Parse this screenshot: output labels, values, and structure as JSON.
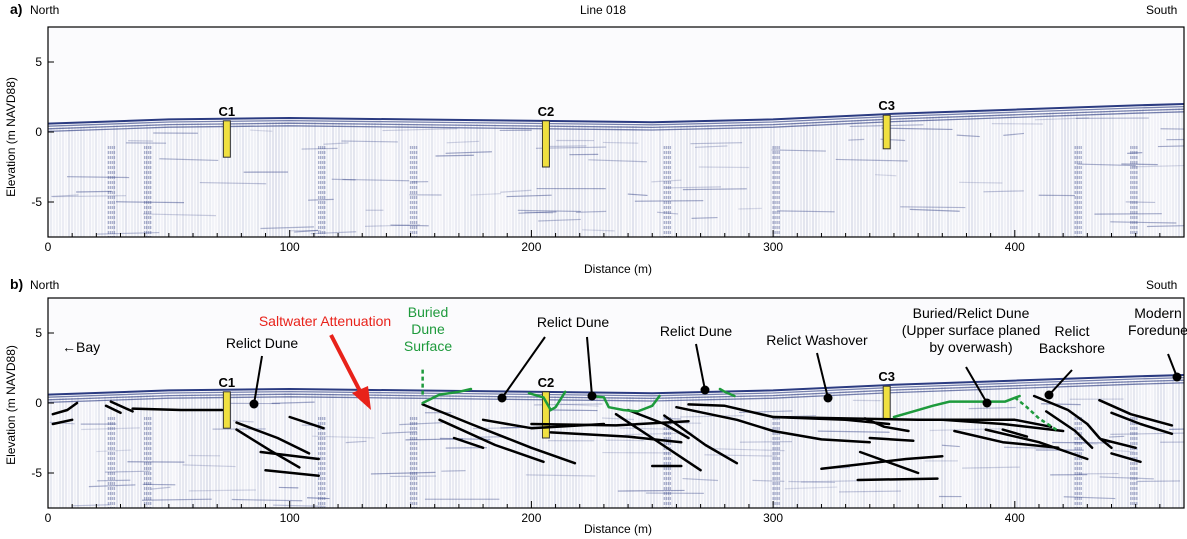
{
  "panels": [
    {
      "id": "a",
      "panel_label": "a)",
      "left_label": "North",
      "title": "Line 018",
      "right_label": "South",
      "xlabel": "Distance (m)",
      "ylabel": "Elevation (m NAVD88)",
      "cores": [
        "C1",
        "C2",
        "C3"
      ],
      "annotations": []
    },
    {
      "id": "b",
      "panel_label": "b)",
      "left_label": "North",
      "title": "",
      "right_label": "South",
      "xlabel": "Distance (m)",
      "ylabel": "Elevation (m NAVD88)",
      "cores": [
        "C1",
        "C2",
        "C3"
      ],
      "annotations": [
        {
          "name": "bay-label",
          "text": "←Bay",
          "color": "#000000"
        },
        {
          "name": "saltwater-attenuation-label",
          "text": "Saltwater Attenuation",
          "color": "#e8221a"
        },
        {
          "name": "buried-dune-surface-label",
          "lines": [
            "Buried",
            "Dune",
            "Surface"
          ],
          "color": "#1e9a3c"
        },
        {
          "name": "relict-dune-label-1",
          "text": "Relict Dune",
          "color": "#000000"
        },
        {
          "name": "relict-dune-label-2",
          "text": "Relict Dune",
          "color": "#000000"
        },
        {
          "name": "relict-dune-label-3",
          "text": "Relict Dune",
          "color": "#000000"
        },
        {
          "name": "relict-washover-label",
          "text": "Relict Washover",
          "color": "#000000"
        },
        {
          "name": "buried-relict-dune-label",
          "lines": [
            "Buried/Relict Dune",
            "(Upper surface planed",
            "by overwash)"
          ],
          "color": "#000000"
        },
        {
          "name": "relict-backshore-label",
          "lines": [
            "Relict",
            "Backshore"
          ],
          "color": "#000000"
        },
        {
          "name": "modern-foredune-label",
          "lines": [
            "Modern",
            "Foredune"
          ],
          "color": "#000000"
        }
      ]
    }
  ],
  "chart_data": {
    "type": "line",
    "xlim": [
      0,
      470
    ],
    "ylim": [
      -7.5,
      7.5
    ],
    "x_ticks": [
      0,
      100,
      200,
      300,
      400
    ],
    "y_ticks": [
      5,
      0,
      -5
    ],
    "xlabel": "Distance (m)",
    "ylabel": "Elevation (m NAVD88)",
    "grid": false,
    "colors": {
      "radar": "#20307a",
      "reflector": "#000000",
      "buried_surface": "#1e9a3c",
      "core": "#f0e040",
      "arrow": "#e8221a"
    },
    "series": [
      {
        "name": "",
        "x": [
          0,
          50,
          100,
          150,
          200,
          250,
          300,
          350,
          400,
          450,
          470
        ],
        "y": [
          0.6,
          0.9,
          1.0,
          0.9,
          0.8,
          0.7,
          0.9,
          1.3,
          1.6,
          1.9,
          2.0
        ]
      }
    ],
    "cores": [
      {
        "name": "C1",
        "x": 74,
        "top": 0.8,
        "bottom": -1.8
      },
      {
        "name": "C2",
        "x": 206,
        "top": 0.8,
        "bottom": -2.5
      },
      {
        "name": "C3",
        "x": 347,
        "top": 1.2,
        "bottom": -1.2
      }
    ],
    "reflectors": [
      [
        [
          2,
          -0.8
        ],
        [
          8,
          -0.5
        ],
        [
          12,
          0
        ]
      ],
      [
        [
          2,
          -1.5
        ],
        [
          10,
          -1.2
        ]
      ],
      [
        [
          24,
          -0.2
        ],
        [
          30,
          -0.7
        ]
      ],
      [
        [
          26,
          0.1
        ],
        [
          35,
          -0.6
        ]
      ],
      [
        [
          35,
          -0.4
        ],
        [
          55,
          -0.5
        ],
        [
          72,
          -0.5
        ]
      ],
      [
        [
          78,
          -1.4
        ],
        [
          95,
          -2.5
        ],
        [
          108,
          -3.6
        ]
      ],
      [
        [
          78,
          -1.9
        ],
        [
          92,
          -3.4
        ],
        [
          104,
          -4.6
        ]
      ],
      [
        [
          88,
          -3.5
        ],
        [
          112,
          -4.0
        ]
      ],
      [
        [
          90,
          -4.8
        ],
        [
          112,
          -5.2
        ]
      ],
      [
        [
          100,
          -1.0
        ],
        [
          114,
          -1.8
        ]
      ],
      [
        [
          155,
          -0.1
        ],
        [
          175,
          -1.5
        ],
        [
          200,
          -3.2
        ],
        [
          218,
          -4.3
        ]
      ],
      [
        [
          168,
          -2.5
        ],
        [
          180,
          -3.2
        ]
      ],
      [
        [
          162,
          -1.2
        ],
        [
          185,
          -3.0
        ],
        [
          205,
          -4.2
        ]
      ],
      [
        [
          180,
          -1.2
        ],
        [
          200,
          -1.8
        ],
        [
          230,
          -1.5
        ]
      ],
      [
        [
          200,
          -1.5
        ],
        [
          235,
          -1.6
        ],
        [
          265,
          -1.3
        ]
      ],
      [
        [
          208,
          -2.1
        ],
        [
          240,
          -2.4
        ],
        [
          262,
          -2.8
        ]
      ],
      [
        [
          240,
          -0.5
        ],
        [
          255,
          -1.5
        ],
        [
          265,
          -2.5
        ]
      ],
      [
        [
          235,
          -0.8
        ],
        [
          250,
          -2.5
        ],
        [
          270,
          -4.8
        ]
      ],
      [
        [
          255,
          -0.9
        ],
        [
          272,
          -3.0
        ],
        [
          285,
          -4.3
        ]
      ],
      [
        [
          250,
          -4.5
        ],
        [
          262,
          -4.5
        ]
      ],
      [
        [
          260,
          -0.3
        ],
        [
          285,
          -1.2
        ],
        [
          300,
          -2.0
        ],
        [
          320,
          -2.6
        ],
        [
          340,
          -2.8
        ]
      ],
      [
        [
          265,
          -0.1
        ],
        [
          280,
          -0.2
        ],
        [
          300,
          -1.0
        ],
        [
          360,
          -1.2
        ],
        [
          400,
          -1.2
        ],
        [
          415,
          -1.7
        ]
      ],
      [
        [
          300,
          -1.0
        ],
        [
          330,
          -1.2
        ],
        [
          348,
          -1.5
        ]
      ],
      [
        [
          340,
          -2.5
        ],
        [
          358,
          -2.7
        ]
      ],
      [
        [
          336,
          -3.5
        ],
        [
          360,
          -5.0
        ]
      ],
      [
        [
          370,
          -3.8
        ],
        [
          355,
          -4.0
        ],
        [
          330,
          -4.5
        ],
        [
          320,
          -4.7
        ]
      ],
      [
        [
          335,
          -5.5
        ],
        [
          368,
          -5.4
        ]
      ],
      [
        [
          338,
          -1.1
        ],
        [
          346,
          -1.7
        ],
        [
          356,
          -2.0
        ]
      ],
      [
        [
          370,
          -1.2
        ],
        [
          395,
          -1.5
        ],
        [
          420,
          -2.0
        ]
      ],
      [
        [
          375,
          -2.0
        ],
        [
          395,
          -2.8
        ],
        [
          418,
          -3.2
        ]
      ],
      [
        [
          388,
          -1.9
        ],
        [
          410,
          -2.8
        ],
        [
          430,
          -4.0
        ]
      ],
      [
        [
          395,
          -1.9
        ],
        [
          405,
          -2.4
        ]
      ],
      [
        [
          408,
          0.5
        ],
        [
          422,
          -0.5
        ],
        [
          430,
          -1.5
        ],
        [
          435,
          -2.5
        ],
        [
          440,
          -3.2
        ]
      ],
      [
        [
          413,
          -0.6
        ],
        [
          425,
          -2.0
        ],
        [
          432,
          -3.2
        ]
      ],
      [
        [
          435,
          0.2
        ],
        [
          448,
          -0.8
        ],
        [
          465,
          -1.6
        ]
      ],
      [
        [
          440,
          -0.7
        ],
        [
          452,
          -1.5
        ],
        [
          465,
          -2.2
        ]
      ],
      [
        [
          436,
          -2.6
        ],
        [
          450,
          -3.2
        ]
      ],
      [
        [
          440,
          -3.6
        ],
        [
          452,
          -4.2
        ]
      ]
    ],
    "buried_surfaces": [
      [
        [
          155,
          0.0
        ],
        [
          162,
          0.6
        ],
        [
          170,
          0.8
        ],
        [
          175,
          1.0
        ]
      ],
      [
        [
          199,
          0.7
        ],
        [
          205,
          0.4
        ],
        [
          208,
          -0.5
        ],
        [
          210,
          -0.3
        ],
        [
          214,
          0.8
        ]
      ],
      [
        [
          225,
          0.5
        ],
        [
          230,
          0.4
        ],
        [
          232,
          -0.3
        ],
        [
          238,
          -0.5
        ],
        [
          244,
          -0.6
        ],
        [
          250,
          -0.2
        ],
        [
          253,
          0.5
        ]
      ],
      [
        [
          278,
          1.0
        ],
        [
          280,
          0.8
        ],
        [
          284,
          0.5
        ]
      ],
      [
        [
          350,
          -1.0
        ],
        [
          358,
          -0.6
        ],
        [
          366,
          -0.2
        ],
        [
          373,
          0.1
        ],
        [
          383,
          0.1
        ],
        [
          396,
          0.1
        ],
        [
          402,
          0.5
        ]
      ]
    ],
    "buried_dashed": [
      [
        [
          155,
          0.6
        ],
        [
          155,
          2.5
        ]
      ],
      [
        [
          400,
          0.4
        ],
        [
          405,
          -0.3
        ],
        [
          410,
          -1.1
        ],
        [
          418,
          -2.0
        ]
      ]
    ]
  }
}
